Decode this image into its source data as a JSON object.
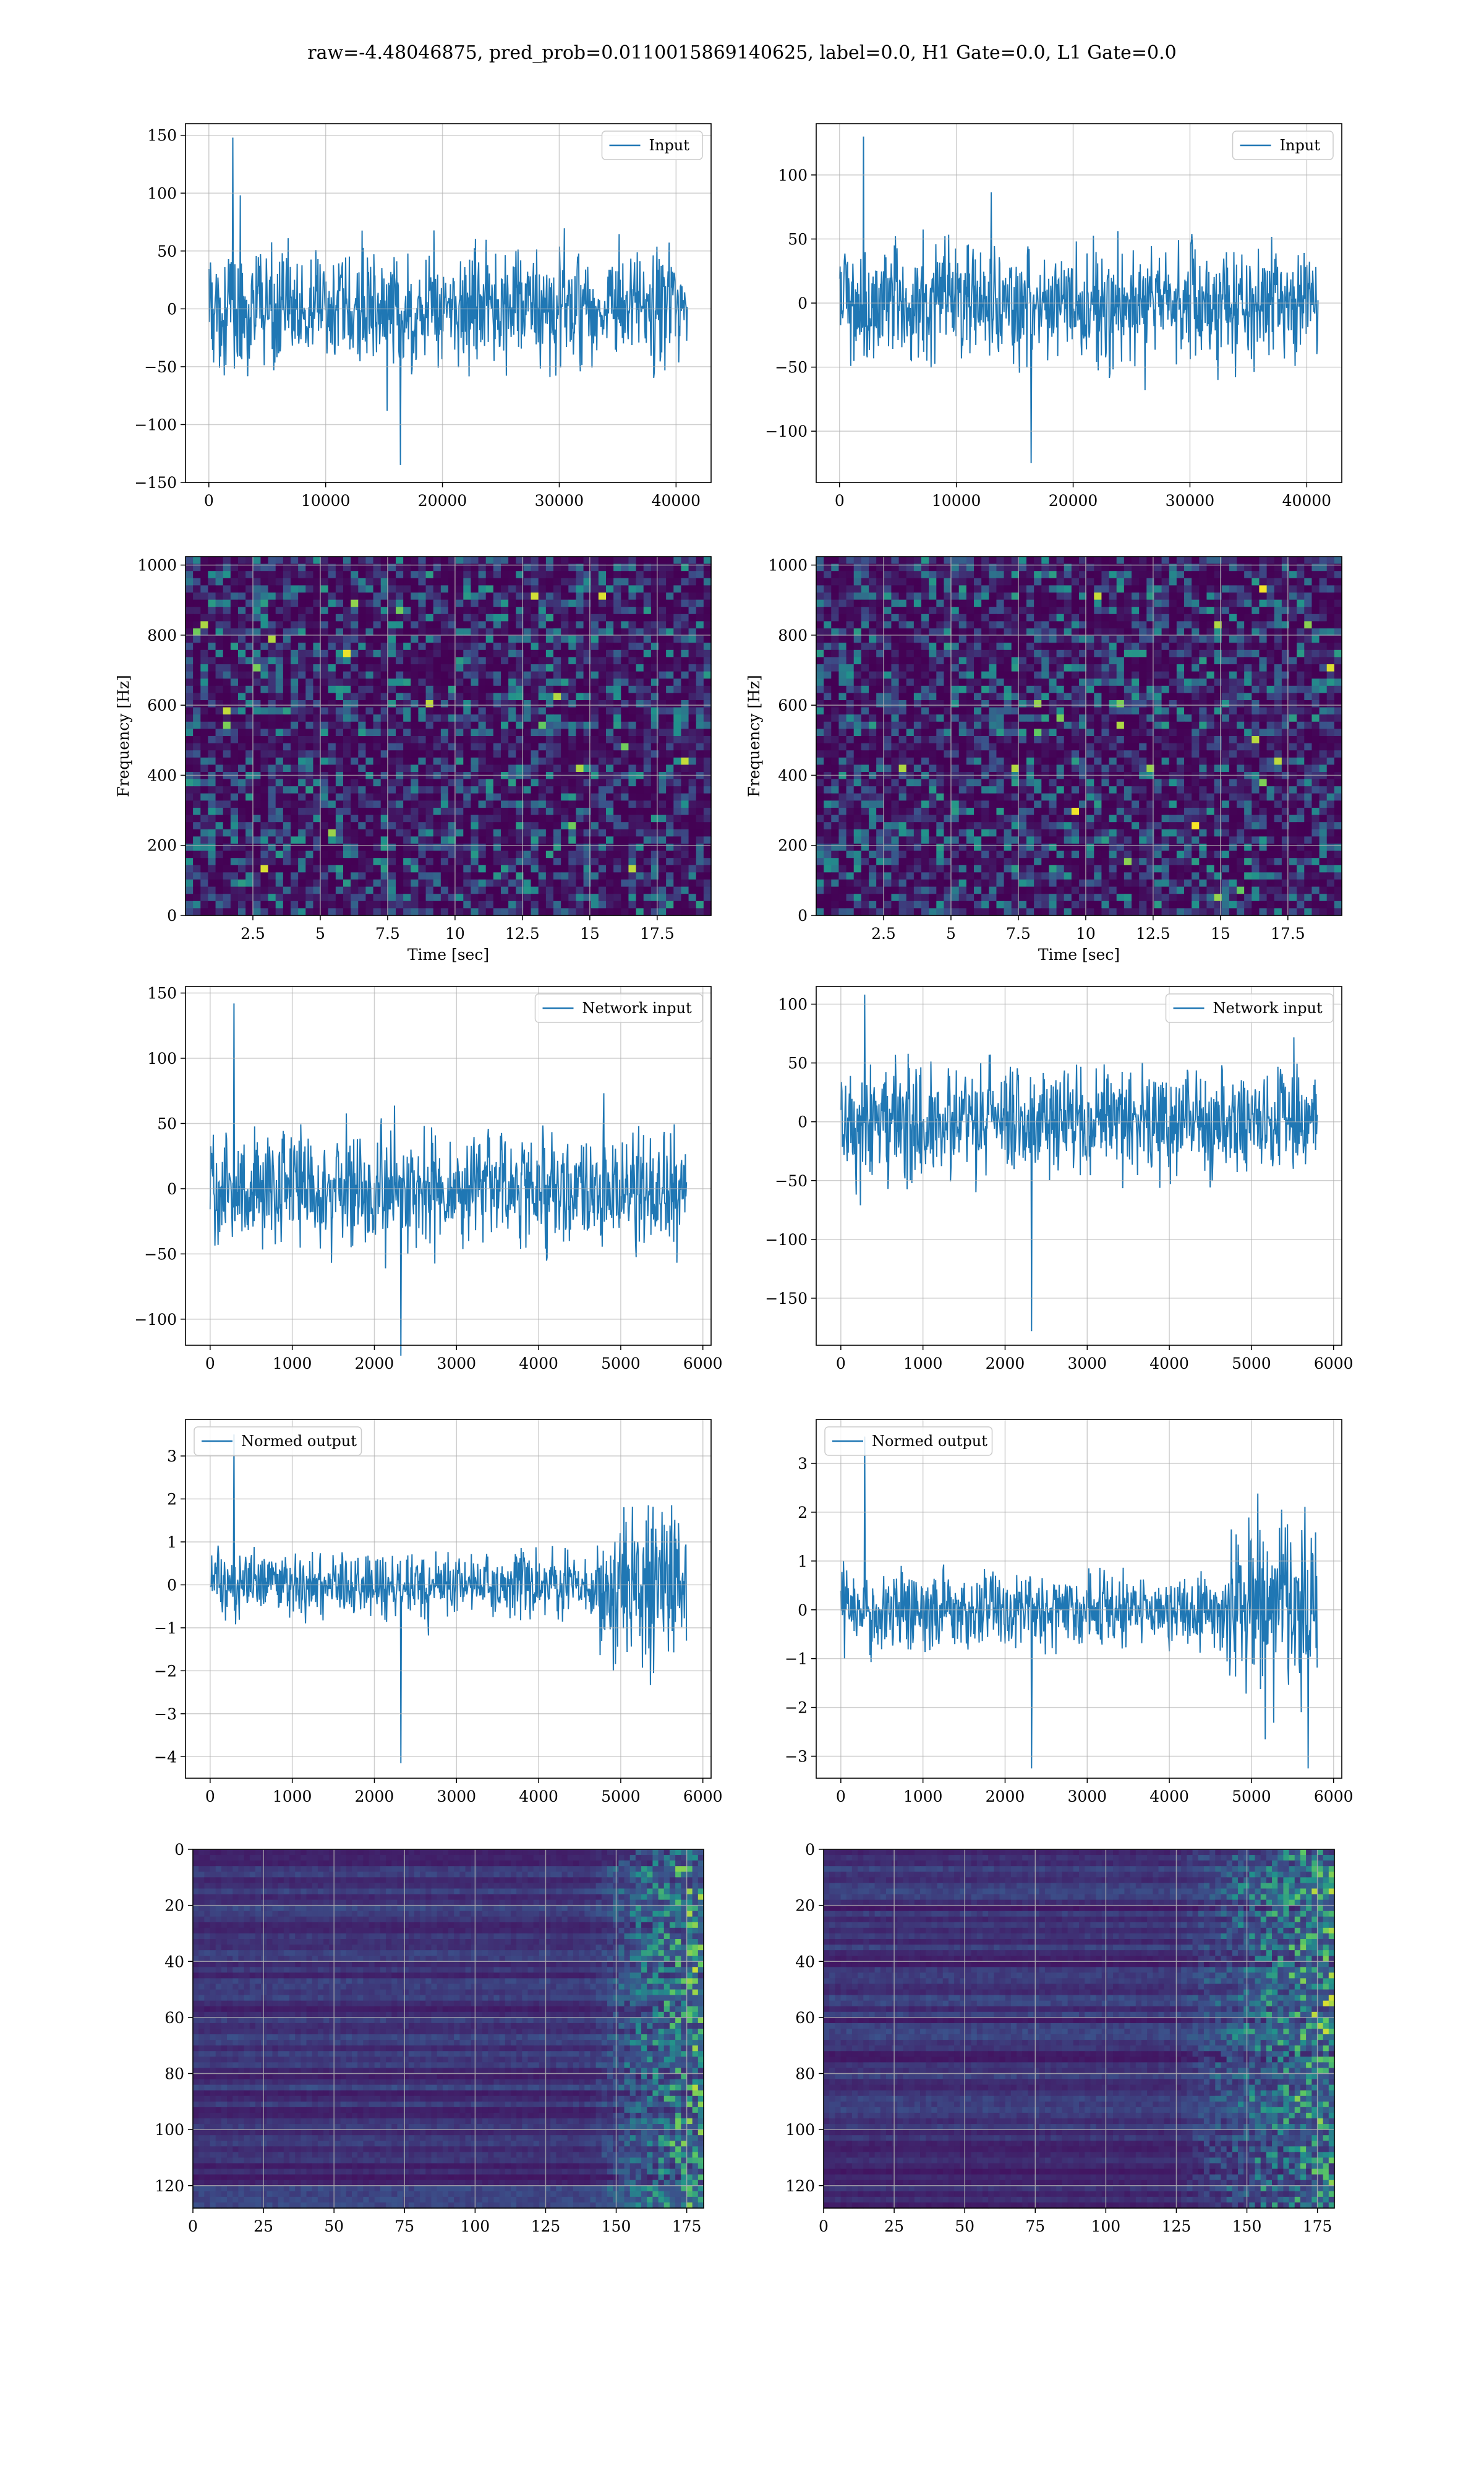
{
  "suptitle": "raw=-4.48046875, pred_prob=0.0110015869140625, label=0.0, H1 Gate=0.0, L1 Gate=0.0",
  "colors": {
    "line": "#1f77b4",
    "grid": "#b0b0b0",
    "viridis_low": "#440154",
    "viridis_mid": "#21918c",
    "viridis_high": "#fde725"
  },
  "chart_data": [
    {
      "id": "input-H1",
      "type": "line",
      "legend": "Input",
      "legend_pos": "upper right",
      "xlim": [
        -2000,
        43000
      ],
      "ylim": [
        -150,
        160
      ],
      "xticks": [
        0,
        10000,
        20000,
        30000,
        40000
      ],
      "yticks": [
        -150,
        -100,
        -50,
        0,
        50,
        100,
        150
      ],
      "x_range": [
        0,
        40960
      ],
      "noise_amplitude": 45,
      "y_extremes": [
        -135,
        148
      ],
      "grid": true
    },
    {
      "id": "input-L1",
      "type": "line",
      "legend": "Input",
      "legend_pos": "upper right",
      "xlim": [
        -2000,
        43000
      ],
      "ylim": [
        -140,
        140
      ],
      "xticks": [
        0,
        10000,
        20000,
        30000,
        40000
      ],
      "yticks": [
        -100,
        -50,
        0,
        50,
        100
      ],
      "x_range": [
        0,
        40960
      ],
      "noise_amplitude": 40,
      "y_extremes": [
        -125,
        130
      ],
      "grid": true
    },
    {
      "id": "spec-H1",
      "type": "heatmap",
      "xlabel": "Time [sec]",
      "ylabel": "Frequency [Hz]",
      "xlim": [
        0,
        19.5
      ],
      "ylim": [
        0,
        1024
      ],
      "xticks": [
        2.5,
        5.0,
        7.5,
        10.0,
        12.5,
        15.0,
        17.5
      ],
      "yticks": [
        0,
        200,
        400,
        600,
        800,
        1000
      ],
      "colormap": "viridis",
      "grid": true
    },
    {
      "id": "spec-L1",
      "type": "heatmap",
      "xlabel": "Time [sec]",
      "ylabel": "Frequency [Hz]",
      "xlim": [
        0,
        19.5
      ],
      "ylim": [
        0,
        1024
      ],
      "xticks": [
        2.5,
        5.0,
        7.5,
        10.0,
        12.5,
        15.0,
        17.5
      ],
      "yticks": [
        0,
        200,
        400,
        600,
        800,
        1000
      ],
      "colormap": "viridis",
      "grid": true
    },
    {
      "id": "net-H1",
      "type": "line",
      "legend": "Network input",
      "legend_pos": "upper right",
      "xlim": [
        -300,
        6100
      ],
      "ylim": [
        -120,
        155
      ],
      "xticks": [
        0,
        1000,
        2000,
        3000,
        4000,
        5000,
        6000
      ],
      "yticks": [
        -100,
        -50,
        0,
        50,
        100,
        150
      ],
      "x_range": [
        0,
        5800
      ],
      "noise_amplitude": 40,
      "y_extremes": [
        -128,
        142
      ],
      "grid": true
    },
    {
      "id": "net-L1",
      "type": "line",
      "legend": "Network input",
      "legend_pos": "upper right",
      "xlim": [
        -300,
        6100
      ],
      "ylim": [
        -190,
        115
      ],
      "xticks": [
        0,
        1000,
        2000,
        3000,
        4000,
        5000,
        6000
      ],
      "yticks": [
        -150,
        -100,
        -50,
        0,
        50,
        100
      ],
      "x_range": [
        0,
        5800
      ],
      "noise_amplitude": 40,
      "y_extremes": [
        -178,
        108
      ],
      "grid": true
    },
    {
      "id": "norm-H1",
      "type": "line",
      "legend": "Normed output",
      "legend_pos": "upper left",
      "xlim": [
        -300,
        6100
      ],
      "ylim": [
        -4.5,
        3.85
      ],
      "xticks": [
        0,
        1000,
        2000,
        3000,
        4000,
        5000,
        6000
      ],
      "yticks": [
        -4,
        -3,
        -2,
        -1,
        0,
        1,
        2,
        3
      ],
      "x_range": [
        0,
        5800
      ],
      "noise_amplitude": 0.65,
      "burst_start": 4700,
      "burst_amplitude": 1.7,
      "y_extremes": [
        -4.15,
        3.5
      ],
      "grid": true
    },
    {
      "id": "norm-L1",
      "type": "line",
      "legend": "Normed output",
      "legend_pos": "upper left",
      "xlim": [
        -300,
        6100
      ],
      "ylim": [
        -3.45,
        3.9
      ],
      "xticks": [
        0,
        1000,
        2000,
        3000,
        4000,
        5000,
        6000
      ],
      "yticks": [
        -3,
        -2,
        -1,
        0,
        1,
        2,
        3
      ],
      "x_range": [
        0,
        5800
      ],
      "noise_amplitude": 0.65,
      "burst_start": 4700,
      "burst_amplitude": 1.6,
      "y_extremes": [
        -3.25,
        3.55
      ],
      "grid": true
    },
    {
      "id": "feat-H1",
      "type": "heatmap",
      "xlim": [
        0,
        181
      ],
      "ylim": [
        128,
        0
      ],
      "xticks": [
        0,
        25,
        50,
        75,
        100,
        125,
        150,
        175
      ],
      "yticks": [
        0,
        20,
        40,
        60,
        80,
        100,
        120
      ],
      "colormap": "viridis",
      "active_from": 140,
      "grid": true
    },
    {
      "id": "feat-L1",
      "type": "heatmap",
      "xlim": [
        0,
        181
      ],
      "ylim": [
        128,
        0
      ],
      "xticks": [
        0,
        25,
        50,
        75,
        100,
        125,
        150,
        175
      ],
      "yticks": [
        0,
        20,
        40,
        60,
        80,
        100,
        120
      ],
      "colormap": "viridis",
      "active_from": 125,
      "grid": true
    }
  ]
}
